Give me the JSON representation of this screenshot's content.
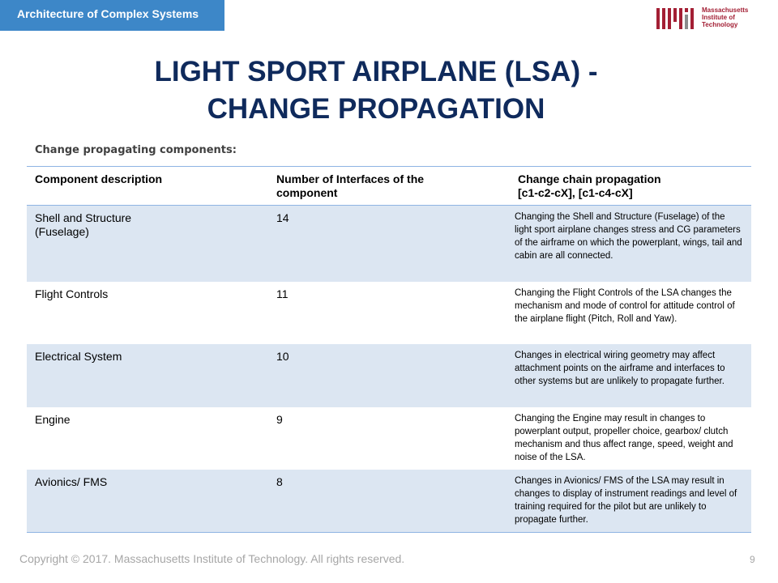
{
  "header": {
    "banner": "Architecture of Complex Systems",
    "logo_text": [
      "Massachusetts",
      "Institute of",
      "Technology"
    ],
    "logo_color": "#a31f34"
  },
  "title": {
    "line1": "LIGHT SPORT AIRPLANE (LSA) -",
    "line2": "CHANGE PROPAGATION"
  },
  "subheading": "Change propagating components:",
  "table": {
    "headers": {
      "component": "Component description",
      "interfaces_line1": "Number of Interfaces of the",
      "interfaces_line2": "component",
      "chain_line1": "Change chain propagation",
      "chain_line2": "[c1-c2-cX], [c1-c4-cX]"
    },
    "rows": [
      {
        "component": [
          "Shell and Structure",
          "(Fuselage)"
        ],
        "interfaces": "14",
        "description": "Changing the Shell and Structure (Fuselage) of the light sport airplane changes stress and CG parameters of the airframe on which the powerplant, wings, tail and cabin are all connected."
      },
      {
        "component": [
          "Flight Controls"
        ],
        "interfaces": "11",
        "description": "Changing the Flight Controls of the LSA changes the mechanism and mode of control for attitude control of the airplane flight (Pitch, Roll and Yaw)."
      },
      {
        "component": [
          "Electrical System"
        ],
        "interfaces": "10",
        "description": "Changes in electrical wiring geometry may affect attachment points on the airframe and interfaces to other systems but are unlikely to propagate further."
      },
      {
        "component": [
          "Engine"
        ],
        "interfaces": "9",
        "description": "Changing the Engine may result in changes to powerplant output, propeller choice, gearbox/ clutch mechanism and thus affect range, speed, weight and noise of the LSA."
      },
      {
        "component": [
          "Avionics/ FMS"
        ],
        "interfaces": "8",
        "description": "Changes in Avionics/ FMS of the LSA may result in changes to display of instrument readings and level of training required for the pilot but are unlikely to propagate further."
      }
    ]
  },
  "footer": {
    "copyright": "Copyright © 2017. Massachusetts Institute of Technology. All rights reserved.",
    "page_number": "9"
  }
}
